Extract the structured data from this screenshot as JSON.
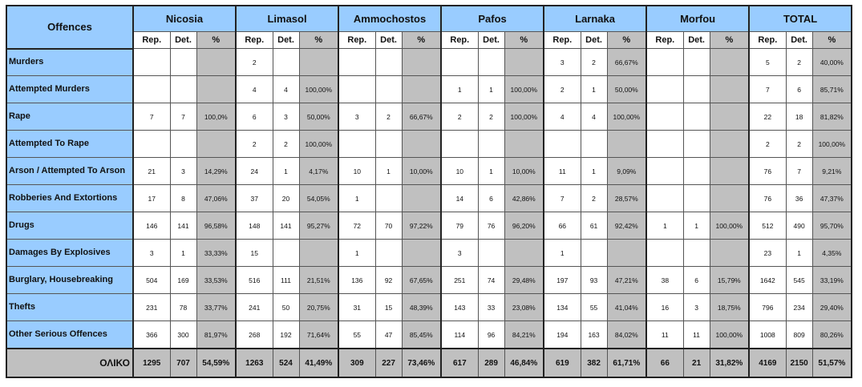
{
  "header": {
    "offences": "Offences",
    "sub": [
      "Rep.",
      "Det.",
      "%"
    ]
  },
  "groups": [
    "Nicosia",
    "Limasol",
    "Ammochostos",
    "Pafos",
    "Larnaka",
    "Morfou",
    "TOTAL"
  ],
  "rows": [
    {
      "label": "Murders",
      "cells": [
        [
          "",
          "",
          ""
        ],
        [
          "2",
          "",
          ""
        ],
        [
          "",
          "",
          ""
        ],
        [
          "",
          "",
          ""
        ],
        [
          "3",
          "2",
          "66,67%"
        ],
        [
          "",
          "",
          ""
        ],
        [
          "5",
          "2",
          "40,00%"
        ]
      ]
    },
    {
      "label": "Attempted Murders",
      "cells": [
        [
          "",
          "",
          ""
        ],
        [
          "4",
          "4",
          "100,00%"
        ],
        [
          "",
          "",
          ""
        ],
        [
          "1",
          "1",
          "100,00%"
        ],
        [
          "2",
          "1",
          "50,00%"
        ],
        [
          "",
          "",
          ""
        ],
        [
          "7",
          "6",
          "85,71%"
        ]
      ]
    },
    {
      "label": "Rape",
      "cells": [
        [
          "7",
          "7",
          "100,0%"
        ],
        [
          "6",
          "3",
          "50,00%"
        ],
        [
          "3",
          "2",
          "66,67%"
        ],
        [
          "2",
          "2",
          "100,00%"
        ],
        [
          "4",
          "4",
          "100,00%"
        ],
        [
          "",
          "",
          ""
        ],
        [
          "22",
          "18",
          "81,82%"
        ]
      ]
    },
    {
      "label": "Attempted To Rape",
      "cells": [
        [
          "",
          "",
          ""
        ],
        [
          "2",
          "2",
          "100,00%"
        ],
        [
          "",
          "",
          ""
        ],
        [
          "",
          "",
          ""
        ],
        [
          "",
          "",
          ""
        ],
        [
          "",
          "",
          ""
        ],
        [
          "2",
          "2",
          "100,00%"
        ]
      ]
    },
    {
      "label": "Arson / Attempted To Arson",
      "cells": [
        [
          "21",
          "3",
          "14,29%"
        ],
        [
          "24",
          "1",
          "4,17%"
        ],
        [
          "10",
          "1",
          "10,00%"
        ],
        [
          "10",
          "1",
          "10,00%"
        ],
        [
          "11",
          "1",
          "9,09%"
        ],
        [
          "",
          "",
          ""
        ],
        [
          "76",
          "7",
          "9,21%"
        ]
      ]
    },
    {
      "label": "Robberies And Extortions",
      "cells": [
        [
          "17",
          "8",
          "47,06%"
        ],
        [
          "37",
          "20",
          "54,05%"
        ],
        [
          "1",
          "",
          ""
        ],
        [
          "14",
          "6",
          "42,86%"
        ],
        [
          "7",
          "2",
          "28,57%"
        ],
        [
          "",
          "",
          ""
        ],
        [
          "76",
          "36",
          "47,37%"
        ]
      ]
    },
    {
      "label": "Drugs",
      "cells": [
        [
          "146",
          "141",
          "96,58%"
        ],
        [
          "148",
          "141",
          "95,27%"
        ],
        [
          "72",
          "70",
          "97,22%"
        ],
        [
          "79",
          "76",
          "96,20%"
        ],
        [
          "66",
          "61",
          "92,42%"
        ],
        [
          "1",
          "1",
          "100,00%"
        ],
        [
          "512",
          "490",
          "95,70%"
        ]
      ]
    },
    {
      "label": "Damages By Explosives",
      "cells": [
        [
          "3",
          "1",
          "33,33%"
        ],
        [
          "15",
          "",
          ""
        ],
        [
          "1",
          "",
          ""
        ],
        [
          "3",
          "",
          ""
        ],
        [
          "1",
          "",
          ""
        ],
        [
          "",
          "",
          ""
        ],
        [
          "23",
          "1",
          "4,35%"
        ]
      ]
    },
    {
      "label": "Burglary, Housebreaking",
      "cells": [
        [
          "504",
          "169",
          "33,53%"
        ],
        [
          "516",
          "111",
          "21,51%"
        ],
        [
          "136",
          "92",
          "67,65%"
        ],
        [
          "251",
          "74",
          "29,48%"
        ],
        [
          "197",
          "93",
          "47,21%"
        ],
        [
          "38",
          "6",
          "15,79%"
        ],
        [
          "1642",
          "545",
          "33,19%"
        ]
      ]
    },
    {
      "label": "Thefts",
      "cells": [
        [
          "231",
          "78",
          "33,77%"
        ],
        [
          "241",
          "50",
          "20,75%"
        ],
        [
          "31",
          "15",
          "48,39%"
        ],
        [
          "143",
          "33",
          "23,08%"
        ],
        [
          "134",
          "55",
          "41,04%"
        ],
        [
          "16",
          "3",
          "18,75%"
        ],
        [
          "796",
          "234",
          "29,40%"
        ]
      ]
    },
    {
      "label": "Other Serious Offences",
      "cells": [
        [
          "366",
          "300",
          "81,97%"
        ],
        [
          "268",
          "192",
          "71,64%"
        ],
        [
          "55",
          "47",
          "85,45%"
        ],
        [
          "114",
          "96",
          "84,21%"
        ],
        [
          "194",
          "163",
          "84,02%"
        ],
        [
          "11",
          "11",
          "100,00%"
        ],
        [
          "1008",
          "809",
          "80,26%"
        ]
      ]
    }
  ],
  "total": {
    "label": "ΟΛΙΚΟ",
    "cells": [
      [
        "1295",
        "707",
        "54,59%"
      ],
      [
        "1263",
        "524",
        "41,49%"
      ],
      [
        "309",
        "227",
        "73,46%"
      ],
      [
        "617",
        "289",
        "46,84%"
      ],
      [
        "619",
        "382",
        "61,71%"
      ],
      [
        "66",
        "21",
        "31,82%"
      ],
      [
        "4169",
        "2150",
        "51,57%"
      ]
    ]
  },
  "colors": {
    "header_blue": "#99ccff",
    "percent_gray": "#c0c0c0"
  }
}
